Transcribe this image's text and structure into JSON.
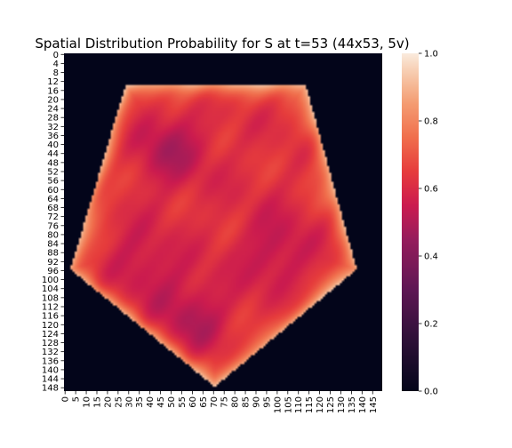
{
  "chart_data": {
    "type": "heatmap",
    "title": "Spatial Distribution Probability for S at t=53 (44x53, 5v)",
    "xlabel": "",
    "ylabel": "",
    "grid": {
      "rows": 150,
      "cols": 150
    },
    "shape": "pentagon",
    "mask_polygon": [
      [
        29,
        14
      ],
      [
        114,
        14
      ],
      [
        138,
        96
      ],
      [
        71,
        148
      ],
      [
        3,
        96
      ]
    ],
    "value_range": [
      0,
      1
    ],
    "background_value": 0.0,
    "typical_inside_value": 0.62,
    "edge_value": 0.9,
    "low_regions": [
      {
        "center": [
          50,
          42
        ],
        "value": 0.5
      },
      {
        "center": [
          60,
          118
        ],
        "value": 0.5
      },
      {
        "center": [
          100,
          88
        ],
        "value": 0.52
      },
      {
        "center": [
          36,
          96
        ],
        "value": 0.53
      }
    ],
    "x_ticks": [
      "0",
      "5",
      "10",
      "15",
      "20",
      "25",
      "30",
      "35",
      "40",
      "45",
      "50",
      "55",
      "60",
      "65",
      "70",
      "75",
      "80",
      "85",
      "90",
      "95",
      "100",
      "105",
      "110",
      "115",
      "120",
      "125",
      "130",
      "135",
      "140",
      "145"
    ],
    "y_ticks": [
      "0",
      "4",
      "8",
      "12",
      "16",
      "20",
      "24",
      "28",
      "32",
      "36",
      "40",
      "44",
      "48",
      "52",
      "56",
      "60",
      "64",
      "68",
      "72",
      "76",
      "80",
      "84",
      "88",
      "92",
      "96",
      "100",
      "104",
      "108",
      "112",
      "116",
      "120",
      "124",
      "128",
      "132",
      "136",
      "140",
      "144",
      "148"
    ],
    "colorbar": {
      "ticks": [
        "0.0",
        "0.2",
        "0.4",
        "0.6",
        "0.8",
        "1.0"
      ],
      "min": 0,
      "max": 1,
      "colormap": "rocket"
    }
  }
}
